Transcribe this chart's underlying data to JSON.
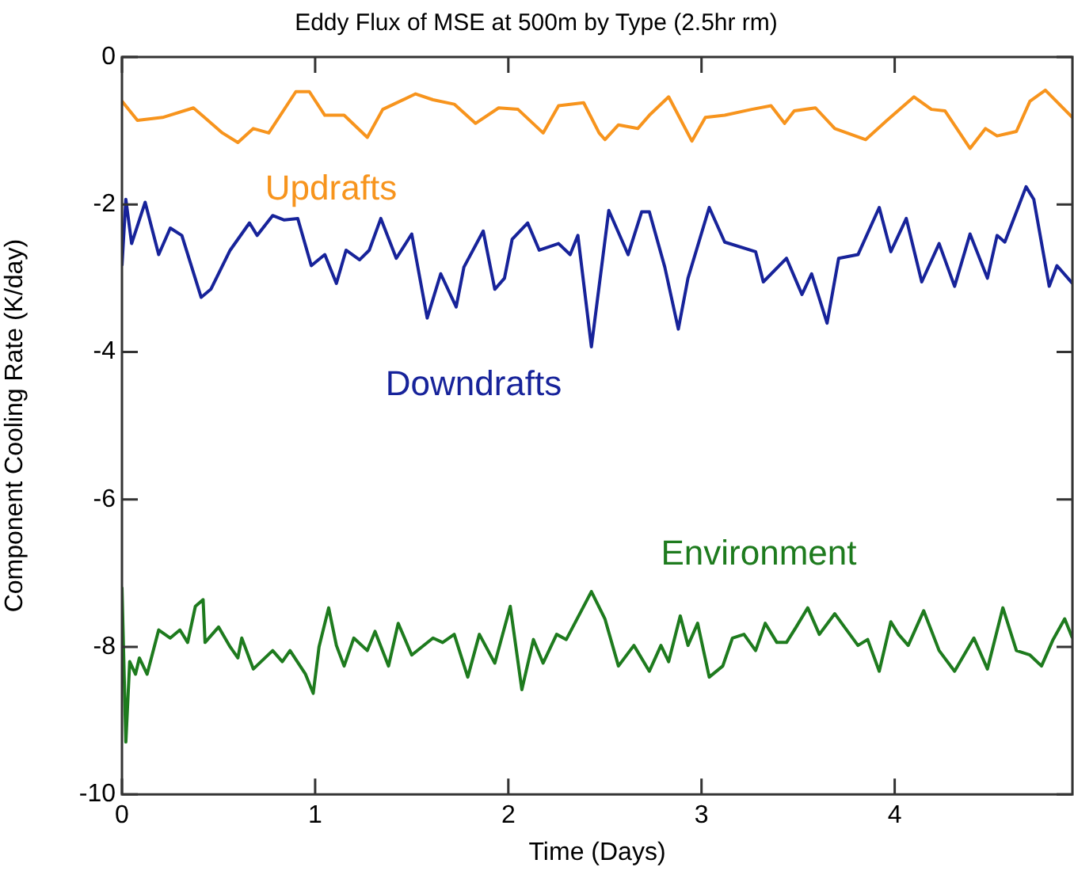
{
  "chart_data": {
    "type": "line",
    "title": "Eddy Flux of MSE at 500m by Type (2.5hr rm)",
    "xlabel": "Time (Days)",
    "ylabel": "Component Cooling Rate (K/day)",
    "xlim": [
      0,
      4.92
    ],
    "xticks": [
      0,
      1,
      2,
      3,
      4
    ],
    "ylim": [
      -10,
      0
    ],
    "yticks": [
      0,
      -2,
      -4,
      -6,
      -8,
      -10
    ],
    "marker": "none",
    "line_style": "solid",
    "series": [
      {
        "name": "Updrafts",
        "color": "#f7941d",
        "x": [
          0,
          0.08,
          0.21,
          0.37,
          0.52,
          0.6,
          0.68,
          0.76,
          0.9,
          0.97,
          1.05,
          1.15,
          1.27,
          1.35,
          1.52,
          1.61,
          1.72,
          1.83,
          1.95,
          2.05,
          2.18,
          2.26,
          2.39,
          2.47,
          2.5,
          2.57,
          2.67,
          2.73,
          2.83,
          2.95,
          3.02,
          3.12,
          3.26,
          3.36,
          3.43,
          3.48,
          3.59,
          3.69,
          3.85,
          3.96,
          4.1,
          4.19,
          4.26,
          4.39,
          4.47,
          4.53,
          4.63,
          4.7,
          4.78,
          4.92
        ],
        "values": [
          -0.6,
          -0.86,
          -0.82,
          -0.69,
          -1.03,
          -1.16,
          -0.97,
          -1.03,
          -0.47,
          -0.47,
          -0.79,
          -0.79,
          -1.09,
          -0.71,
          -0.5,
          -0.58,
          -0.64,
          -0.9,
          -0.69,
          -0.71,
          -1.03,
          -0.66,
          -0.62,
          -1.03,
          -1.12,
          -0.92,
          -0.97,
          -0.79,
          -0.54,
          -1.14,
          -0.82,
          -0.79,
          -0.71,
          -0.66,
          -0.9,
          -0.73,
          -0.69,
          -0.97,
          -1.12,
          -0.86,
          -0.54,
          -0.71,
          -0.73,
          -1.24,
          -0.97,
          -1.07,
          -1.01,
          -0.6,
          -0.45,
          -0.82
        ]
      },
      {
        "name": "Downdrafts",
        "color": "#17239a",
        "x": [
          0,
          0.02,
          0.05,
          0.12,
          0.19,
          0.25,
          0.31,
          0.41,
          0.46,
          0.56,
          0.66,
          0.7,
          0.78,
          0.84,
          0.91,
          0.98,
          1.05,
          1.11,
          1.16,
          1.23,
          1.28,
          1.34,
          1.42,
          1.5,
          1.58,
          1.65,
          1.73,
          1.77,
          1.87,
          1.93,
          1.98,
          2.02,
          2.1,
          2.16,
          2.26,
          2.32,
          2.36,
          2.43,
          2.52,
          2.62,
          2.69,
          2.73,
          2.81,
          2.88,
          2.93,
          3.04,
          3.12,
          3.28,
          3.32,
          3.44,
          3.52,
          3.57,
          3.65,
          3.71,
          3.81,
          3.92,
          3.98,
          4.06,
          4.14,
          4.23,
          4.31,
          4.39,
          4.48,
          4.53,
          4.57,
          4.68,
          4.72,
          4.8,
          4.84,
          4.92
        ],
        "values": [
          -2.83,
          -1.93,
          -2.53,
          -1.97,
          -2.68,
          -2.32,
          -2.42,
          -3.26,
          -3.15,
          -2.62,
          -2.25,
          -2.42,
          -2.15,
          -2.21,
          -2.19,
          -2.83,
          -2.68,
          -3.07,
          -2.62,
          -2.75,
          -2.62,
          -2.19,
          -2.73,
          -2.4,
          -3.54,
          -2.94,
          -3.39,
          -2.85,
          -2.36,
          -3.15,
          -3.0,
          -2.47,
          -2.25,
          -2.62,
          -2.53,
          -2.68,
          -2.42,
          -3.93,
          -2.08,
          -2.68,
          -2.1,
          -2.1,
          -2.85,
          -3.69,
          -3.0,
          -2.04,
          -2.51,
          -2.64,
          -3.05,
          -2.73,
          -3.22,
          -2.94,
          -3.61,
          -2.73,
          -2.68,
          -2.04,
          -2.64,
          -2.19,
          -3.05,
          -2.53,
          -3.11,
          -2.4,
          -3.0,
          -2.42,
          -2.51,
          -1.76,
          -1.93,
          -3.11,
          -2.83,
          -3.07
        ]
      },
      {
        "name": "Environment",
        "color": "#1e7b1e",
        "x": [
          0,
          0.02,
          0.04,
          0.07,
          0.09,
          0.13,
          0.19,
          0.25,
          0.3,
          0.34,
          0.38,
          0.42,
          0.43,
          0.5,
          0.56,
          0.6,
          0.62,
          0.68,
          0.78,
          0.83,
          0.87,
          0.95,
          0.99,
          1.02,
          1.07,
          1.11,
          1.15,
          1.2,
          1.27,
          1.31,
          1.38,
          1.43,
          1.5,
          1.61,
          1.66,
          1.72,
          1.79,
          1.85,
          1.93,
          2.01,
          2.07,
          2.13,
          2.18,
          2.25,
          2.3,
          2.43,
          2.5,
          2.57,
          2.65,
          2.73,
          2.79,
          2.83,
          2.89,
          2.93,
          2.98,
          3.04,
          3.11,
          3.16,
          3.22,
          3.28,
          3.33,
          3.39,
          3.44,
          3.49,
          3.55,
          3.61,
          3.69,
          3.74,
          3.81,
          3.86,
          3.92,
          3.98,
          4.02,
          4.07,
          4.15,
          4.23,
          4.31,
          4.41,
          4.48,
          4.56,
          4.63,
          4.7,
          4.76,
          4.82,
          4.88,
          4.92
        ],
        "values": [
          -7.19,
          -9.29,
          -8.2,
          -8.37,
          -8.15,
          -8.37,
          -7.77,
          -7.88,
          -7.77,
          -7.94,
          -7.45,
          -7.36,
          -7.94,
          -7.73,
          -8.0,
          -8.15,
          -7.88,
          -8.3,
          -8.05,
          -8.2,
          -8.05,
          -8.37,
          -8.63,
          -8.0,
          -7.47,
          -7.98,
          -8.26,
          -7.88,
          -8.05,
          -7.79,
          -8.26,
          -7.68,
          -8.11,
          -7.88,
          -7.94,
          -7.83,
          -8.41,
          -7.83,
          -8.22,
          -7.45,
          -8.58,
          -7.9,
          -8.22,
          -7.83,
          -7.9,
          -7.25,
          -7.62,
          -8.26,
          -7.98,
          -8.33,
          -7.98,
          -8.2,
          -7.58,
          -7.98,
          -7.68,
          -8.41,
          -8.26,
          -7.88,
          -7.83,
          -8.05,
          -7.68,
          -7.94,
          -7.94,
          -7.73,
          -7.47,
          -7.83,
          -7.55,
          -7.73,
          -7.98,
          -7.9,
          -8.33,
          -7.66,
          -7.83,
          -7.98,
          -7.51,
          -8.05,
          -8.33,
          -7.88,
          -8.3,
          -7.47,
          -8.05,
          -8.11,
          -8.26,
          -7.9,
          -7.62,
          -7.88
        ]
      }
    ]
  }
}
